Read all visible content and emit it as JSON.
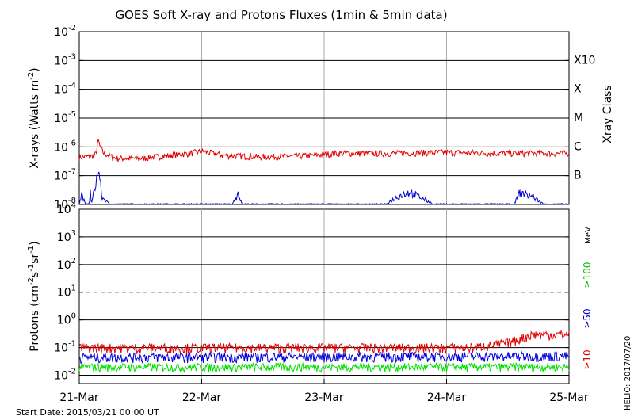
{
  "title": "GOES Soft X-ray and Protons Fluxes   (1min & 5min data)",
  "start_date": "Start Date: 2015/03/21 00:00 UT",
  "credit": "HELIO: 2017/07/20",
  "chart_data": [
    {
      "type": "line",
      "name": "xray-panel",
      "ylabel_main": "X-rays (Watts m",
      "ylabel_sup": "-2",
      "ylabel_tail": ")",
      "yscale": "log",
      "ylim": [
        1e-08,
        0.01
      ],
      "yticks": [
        {
          "b": "10",
          "e": "-2"
        },
        {
          "b": "10",
          "e": "-3"
        },
        {
          "b": "10",
          "e": "-4"
        },
        {
          "b": "10",
          "e": "-5"
        },
        {
          "b": "10",
          "e": "-6"
        },
        {
          "b": "10",
          "e": "-7"
        },
        {
          "b": "10",
          "e": "-8"
        }
      ],
      "right_axis_title": "Xray Class",
      "classes": [
        {
          "label": "X10",
          "level": 0.001
        },
        {
          "label": "X",
          "level": 0.0001
        },
        {
          "label": "M",
          "level": 1e-05
        },
        {
          "label": "C",
          "level": 1e-06
        },
        {
          "label": "B",
          "level": 1e-07
        }
      ],
      "grid": true,
      "series": [
        {
          "color": "#e00000",
          "anchors": [
            [
              0.0,
              4.5e-07
            ],
            [
              0.06,
              4.5e-07
            ],
            [
              0.12,
              5e-07
            ],
            [
              0.14,
              6e-07
            ],
            [
              0.15,
              1.6e-06
            ],
            [
              0.16,
              1.5e-06
            ],
            [
              0.165,
              1.1e-06
            ],
            [
              0.2,
              6e-07
            ],
            [
              0.3,
              4e-07
            ],
            [
              0.5,
              4e-07
            ],
            [
              0.9,
              6e-07
            ],
            [
              1.0,
              7e-07
            ],
            [
              1.2,
              5e-07
            ],
            [
              1.5,
              4.5e-07
            ],
            [
              1.9,
              5e-07
            ],
            [
              2.1,
              6e-07
            ],
            [
              2.5,
              6e-07
            ],
            [
              3.0,
              6.5e-07
            ],
            [
              3.5,
              6e-07
            ],
            [
              4.0,
              6e-07
            ]
          ],
          "noise": 0.25
        },
        {
          "color": "#0000cc",
          "base": 1e-08,
          "anchors": [
            [
              0.0,
              1e-08
            ],
            [
              0.02,
              2.5e-08
            ],
            [
              0.05,
              1e-08
            ],
            [
              0.08,
              1e-08
            ],
            [
              0.09,
              3e-08
            ],
            [
              0.1,
              1e-08
            ],
            [
              0.15,
              1.4e-07
            ],
            [
              0.17,
              1.2e-07
            ],
            [
              0.18,
              2e-08
            ],
            [
              0.25,
              1e-08
            ],
            [
              1.25,
              1e-08
            ],
            [
              1.3,
              3e-08
            ],
            [
              1.33,
              1e-08
            ],
            [
              2.5,
              1e-08
            ],
            [
              2.6,
              2e-08
            ],
            [
              2.7,
              3e-08
            ],
            [
              2.9,
              1e-08
            ],
            [
              3.55,
              1e-08
            ],
            [
              3.6,
              3e-08
            ],
            [
              3.7,
              2e-08
            ],
            [
              3.8,
              1e-08
            ],
            [
              4.0,
              1e-08
            ]
          ],
          "noise": 0.5
        }
      ]
    },
    {
      "type": "line",
      "name": "proton-panel",
      "ylabel_main": "Protons (cm",
      "ylabel_parts": [
        {
          "t": "-2",
          "sup": true
        },
        {
          "t": "s",
          "sup": false
        },
        {
          "t": "-1",
          "sup": true
        },
        {
          "t": "sr",
          "sup": false
        },
        {
          "t": "-1",
          "sup": true
        },
        {
          "t": ")",
          "sup": false
        }
      ],
      "yscale": "log",
      "ylim": [
        0.005,
        10000.0
      ],
      "yticks": [
        {
          "b": "10",
          "e": "4"
        },
        {
          "b": "10",
          "e": "3"
        },
        {
          "b": "10",
          "e": "2"
        },
        {
          "b": "10",
          "e": "1"
        },
        {
          "b": "10",
          "e": "0"
        },
        {
          "b": "10",
          "e": "-1"
        },
        {
          "b": "10",
          "e": "-2"
        }
      ],
      "threshold_dashed": 10,
      "unit_label": "MeV",
      "energy_labels": [
        {
          "label": "≥100",
          "color": "#00c000"
        },
        {
          "label": "≥50",
          "color": "#0000cc"
        },
        {
          "label": "≥10",
          "color": "#e00000"
        }
      ],
      "grid": true,
      "series": [
        {
          "color": "#00e000",
          "anchors": [
            [
              0.0,
              0.02
            ],
            [
              4.0,
              0.02
            ]
          ],
          "noise": 0.35
        },
        {
          "color": "#0000dd",
          "anchors": [
            [
              0.0,
              0.045
            ],
            [
              4.0,
              0.05
            ]
          ],
          "noise": 0.4
        },
        {
          "color": "#e00000",
          "anchors": [
            [
              0.0,
              0.1
            ],
            [
              3.2,
              0.1
            ],
            [
              3.5,
              0.15
            ],
            [
              3.7,
              0.3
            ],
            [
              4.0,
              0.3
            ]
          ],
          "noise": 0.4
        }
      ]
    }
  ],
  "x_axis": {
    "range": [
      0,
      4
    ],
    "ticks": [
      {
        "v": 0,
        "label": "21-Mar"
      },
      {
        "v": 1,
        "label": "22-Mar"
      },
      {
        "v": 2,
        "label": "23-Mar"
      },
      {
        "v": 3,
        "label": "24-Mar"
      },
      {
        "v": 4,
        "label": "25-Mar"
      }
    ]
  }
}
